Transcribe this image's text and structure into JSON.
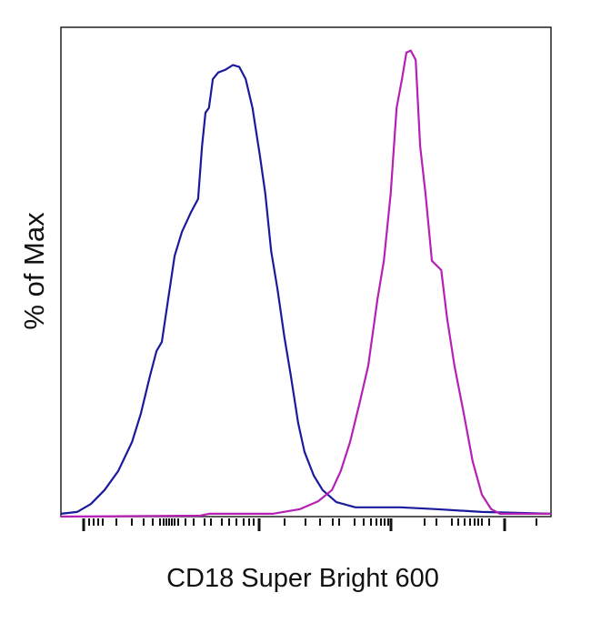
{
  "chart_data": {
    "type": "line",
    "title": "",
    "xlabel": "CD18 Super Bright 600",
    "ylabel": "% of Max",
    "xscale": "log (biexponential), unlabeled",
    "xlim": [
      0,
      100
    ],
    "ylim": [
      0,
      105
    ],
    "grid": false,
    "legend": "none",
    "series": [
      {
        "color": "#1a1a9c",
        "points": [
          [
            0,
            0.6
          ],
          [
            3.3,
            1.0
          ],
          [
            6.1,
            2.7
          ],
          [
            8.9,
            5.7
          ],
          [
            11.7,
            9.8
          ],
          [
            14.5,
            16.0
          ],
          [
            16.3,
            22.1
          ],
          [
            18.2,
            30.3
          ],
          [
            19.5,
            35.5
          ],
          [
            20.6,
            37.5
          ],
          [
            21.9,
            46.7
          ],
          [
            23.2,
            55.9
          ],
          [
            24.7,
            61.1
          ],
          [
            26.5,
            65.2
          ],
          [
            28.0,
            68.2
          ],
          [
            28.8,
            79.5
          ],
          [
            29.5,
            86.7
          ],
          [
            30.2,
            87.7
          ],
          [
            31.0,
            93.9
          ],
          [
            32.1,
            95.3
          ],
          [
            33.6,
            95.9
          ],
          [
            35.1,
            96.9
          ],
          [
            36.4,
            96.5
          ],
          [
            37.7,
            93.9
          ],
          [
            39.1,
            87.7
          ],
          [
            40.6,
            77.5
          ],
          [
            41.7,
            69.3
          ],
          [
            42.9,
            57.0
          ],
          [
            44.2,
            48.8
          ],
          [
            45.6,
            38.5
          ],
          [
            46.9,
            30.3
          ],
          [
            48.4,
            20.1
          ],
          [
            49.7,
            13.9
          ],
          [
            51.6,
            8.8
          ],
          [
            53.4,
            5.7
          ],
          [
            56.2,
            3.1
          ],
          [
            60.1,
            2.0
          ],
          [
            69.2,
            2.0
          ],
          [
            76.6,
            1.6
          ],
          [
            85.9,
            1.0
          ],
          [
            100,
            0.6
          ]
        ]
      },
      {
        "color": "#b520b5",
        "points": [
          [
            0,
            0
          ],
          [
            28.4,
            0.2
          ],
          [
            30.2,
            0.6
          ],
          [
            43.2,
            0.6
          ],
          [
            48.8,
            1.6
          ],
          [
            52.5,
            3.3
          ],
          [
            55.3,
            5.7
          ],
          [
            57.1,
            9.8
          ],
          [
            59.0,
            16.0
          ],
          [
            60.9,
            24.2
          ],
          [
            62.7,
            32.4
          ],
          [
            64.6,
            46.7
          ],
          [
            65.9,
            54.9
          ],
          [
            67.3,
            69.3
          ],
          [
            68.5,
            87.7
          ],
          [
            69.6,
            93.9
          ],
          [
            70.5,
            99.6
          ],
          [
            71.4,
            100
          ],
          [
            72.4,
            98.0
          ],
          [
            73.3,
            79.5
          ],
          [
            74.4,
            69.3
          ],
          [
            75.7,
            54.9
          ],
          [
            77.6,
            52.9
          ],
          [
            78.8,
            42.6
          ],
          [
            80.3,
            32.4
          ],
          [
            82.2,
            22.1
          ],
          [
            84.0,
            11.9
          ],
          [
            85.9,
            4.7
          ],
          [
            87.8,
            1.6
          ],
          [
            89.6,
            0.6
          ],
          [
            100,
            0.6
          ]
        ]
      }
    ]
  }
}
